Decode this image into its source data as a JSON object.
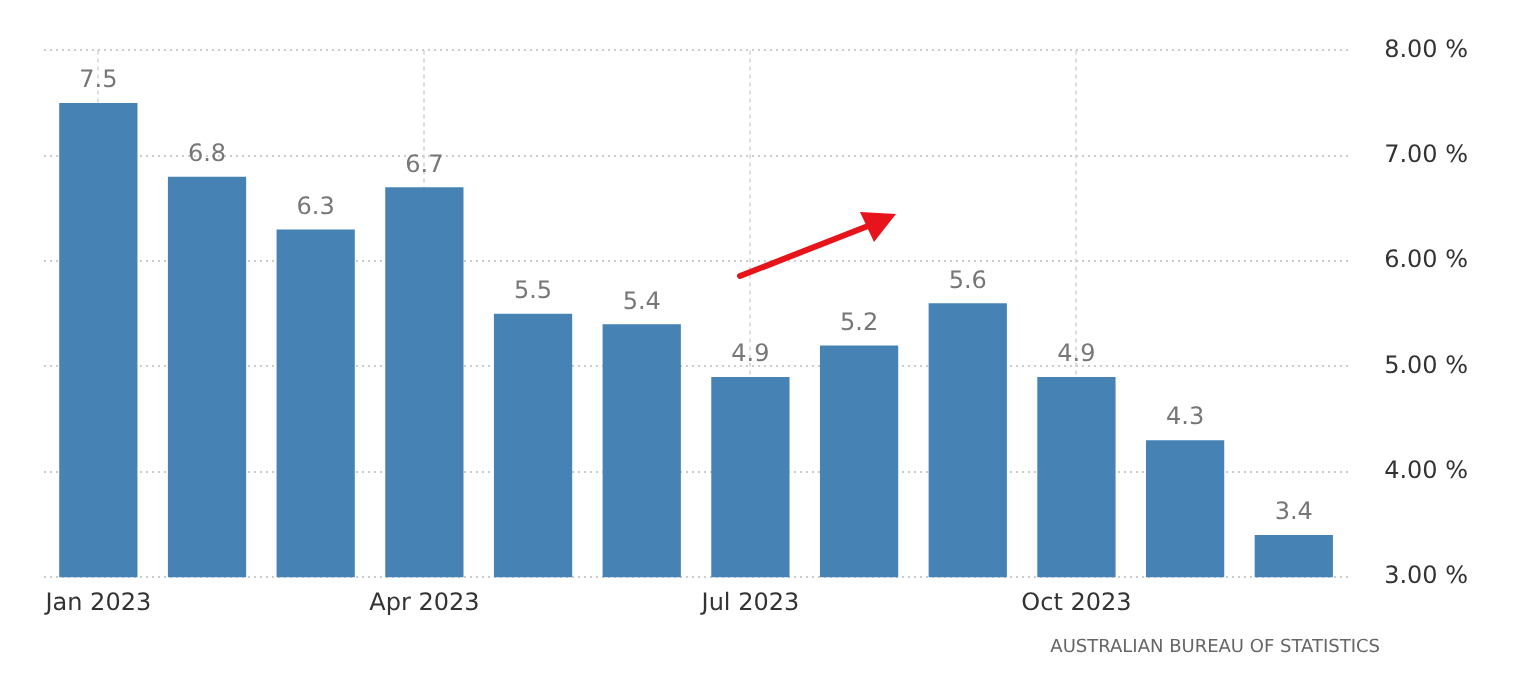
{
  "chart_data": {
    "type": "bar",
    "categories": [
      "Jan 2023",
      null,
      null,
      "Apr 2023",
      null,
      null,
      "Jul 2023",
      null,
      null,
      "Oct 2023",
      null,
      null
    ],
    "values": [
      7.5,
      6.8,
      6.3,
      6.7,
      5.5,
      5.4,
      4.9,
      5.2,
      5.6,
      4.9,
      4.3,
      3.4
    ],
    "color": "#4682b4",
    "ylim": [
      3,
      8
    ],
    "yticks": [
      {
        "value": 3,
        "label": "3.00 %"
      },
      {
        "value": 4,
        "label": "4.00 %"
      },
      {
        "value": 5,
        "label": "5.00 %"
      },
      {
        "value": 6,
        "label": "6.00 %"
      },
      {
        "value": 7,
        "label": "7.00 %"
      },
      {
        "value": 8,
        "label": "8.00 %"
      }
    ],
    "data_labels": true,
    "grid": true,
    "annotations": [
      "AUSTRALIAN BUREAU OF STATISTICS"
    ]
  }
}
